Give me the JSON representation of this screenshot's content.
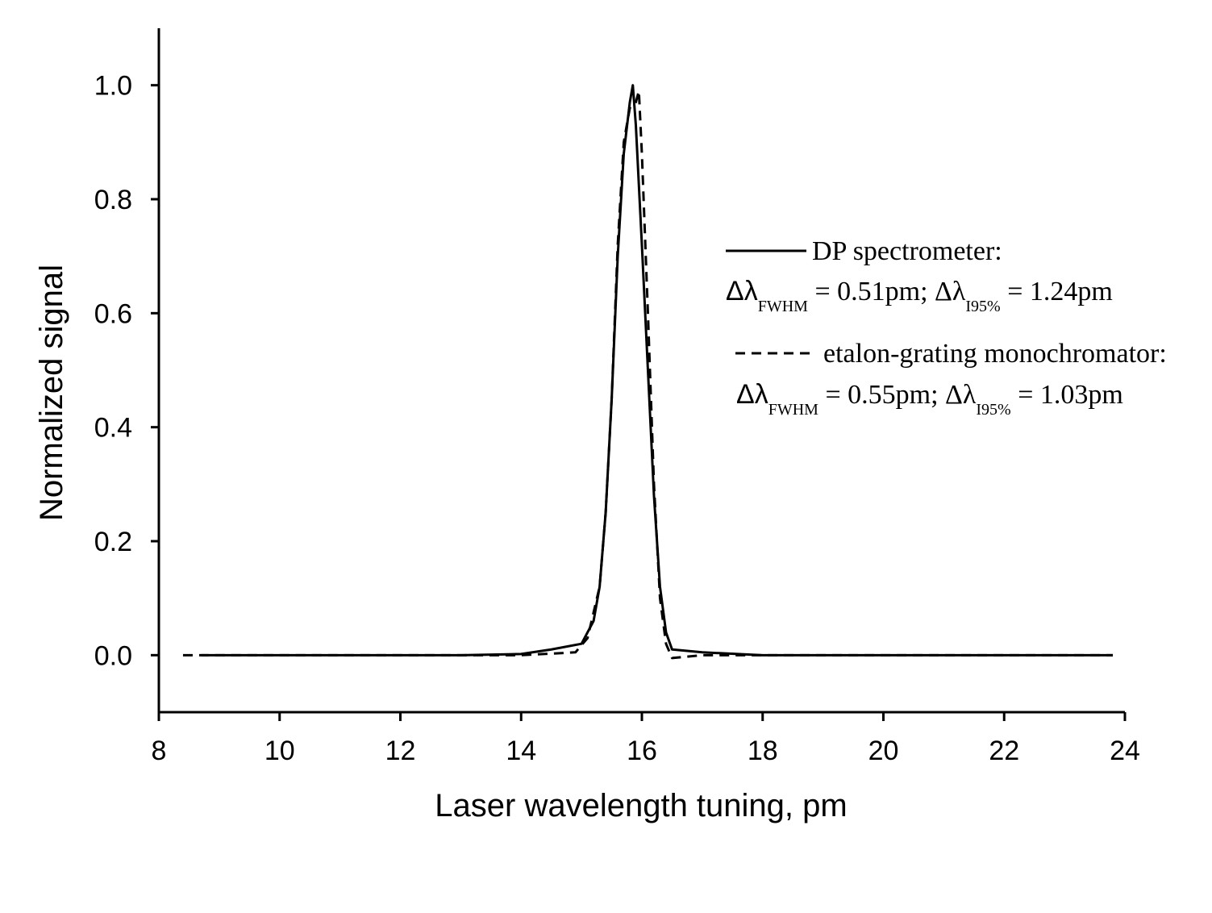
{
  "chart_data": {
    "type": "line",
    "x_label": "Laser wavelength tuning, pm",
    "y_label": "Normalized signal",
    "xlim": [
      8,
      24
    ],
    "xticks": [
      8,
      10,
      12,
      14,
      16,
      18,
      20,
      22,
      24
    ],
    "ylim": [
      -0.1,
      1.1
    ],
    "yticks": [
      {
        "value": 0,
        "label": "0.0"
      },
      0.2,
      0.4,
      0.6,
      0.8,
      {
        "value": 1,
        "label": "1.0"
      }
    ],
    "series": [
      {
        "name": "DP spectrometer:",
        "color": "#000000",
        "line_style": "solid",
        "x": [
          8.7,
          10,
          11,
          12,
          13,
          14,
          14.5,
          15.0,
          15.2,
          15.3,
          15.4,
          15.5,
          15.6,
          15.7,
          15.8,
          15.85,
          15.9,
          16.0,
          16.1,
          16.2,
          16.3,
          16.4,
          16.5,
          17,
          18,
          19,
          20,
          21,
          22,
          23,
          23.8
        ],
        "values": [
          0,
          0,
          0,
          0,
          0,
          0.002,
          0.01,
          0.02,
          0.06,
          0.12,
          0.25,
          0.45,
          0.7,
          0.88,
          0.97,
          1.0,
          0.93,
          0.72,
          0.5,
          0.28,
          0.12,
          0.04,
          0.01,
          0.005,
          0,
          0,
          0,
          0,
          0,
          0,
          0
        ]
      },
      {
        "name": "etalon-grating monochromator:",
        "color": "#000000",
        "line_style": "dashed",
        "x": [
          8.4,
          10,
          11,
          12,
          13,
          14,
          14.9,
          15.1,
          15.3,
          15.4,
          15.5,
          15.6,
          15.7,
          15.8,
          15.9,
          15.95,
          16.0,
          16.1,
          16.2,
          16.3,
          16.4,
          16.5,
          17,
          18,
          19,
          20,
          21,
          22,
          23,
          23.8
        ],
        "values": [
          0,
          0,
          0,
          0,
          0,
          0,
          0.005,
          0.03,
          0.12,
          0.25,
          0.45,
          0.72,
          0.9,
          0.96,
          0.97,
          0.99,
          0.88,
          0.6,
          0.3,
          0.1,
          0.02,
          -0.005,
          0,
          0,
          0,
          0,
          0,
          0,
          0,
          0
        ]
      }
    ],
    "annotations": [
      [
        "Δλ",
        "FWHM",
        " = 0.51pm; Δλ",
        "I95%",
        " = 1.24pm"
      ],
      [
        "Δλ",
        "FWHM",
        " = 0.55pm; Δλ",
        "I95%",
        " = 1.03pm"
      ]
    ]
  }
}
